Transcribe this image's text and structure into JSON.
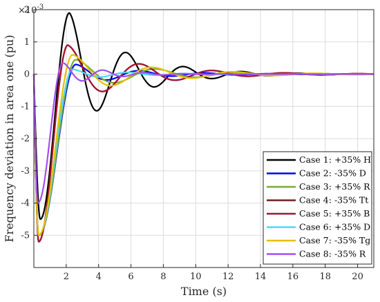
{
  "chart_data": {
    "type": "line",
    "title": "",
    "xlabel": "Time (s)",
    "ylabel": "Frequency deviation in area one (pu)",
    "y_exponent_label": "×10",
    "y_exponent_power": "-3",
    "xlim": [
      0,
      21
    ],
    "ylim": [
      -6,
      2
    ],
    "xticks": [
      "2",
      "4",
      "6",
      "8",
      "10",
      "12",
      "14",
      "16",
      "18",
      "20"
    ],
    "xtick_values": [
      2,
      4,
      6,
      8,
      10,
      12,
      14,
      16,
      18,
      20
    ],
    "yticks": [
      "2",
      "1",
      "0",
      "-1",
      "-2",
      "-3",
      "-4",
      "-5"
    ],
    "ytick_values": [
      2,
      1,
      0,
      -1,
      -2,
      -3,
      -4,
      -5
    ],
    "grid": true,
    "legend_position": "bottom-right",
    "series": [
      {
        "name": "Case 1: +35% H",
        "color": "#000000",
        "shape": [
          0.4,
          -4.5,
          1.9,
          2.2,
          3.55
        ]
      },
      {
        "name": "Case 2: -35% D",
        "color": "#0000ff",
        "shape": [
          0.3,
          -5.0,
          0.3,
          2.6,
          4.0
        ]
      },
      {
        "name": "Case 3: +35% R",
        "color": "#77ac30",
        "shape": [
          0.3,
          -5.0,
          0.45,
          2.6,
          5.0
        ]
      },
      {
        "name": "Case 4: -35% Tt",
        "color": "#6e1c1c",
        "shape": [
          0.3,
          -5.2,
          0.9,
          2.1,
          4.5
        ]
      },
      {
        "name": "Case 5: +35% B",
        "color": "#a2142f",
        "shape": [
          0.3,
          -5.2,
          0.9,
          2.1,
          4.5
        ]
      },
      {
        "name": "Case 6: +35% D",
        "color": "#4dd9f0",
        "shape": [
          0.3,
          -5.0,
          0.15,
          2.4,
          3.5
        ]
      },
      {
        "name": "Case 7: -35% Tg",
        "color": "#e6c000",
        "shape": [
          0.3,
          -5.0,
          0.6,
          2.4,
          5.0
        ]
      },
      {
        "name": "Case 8: -35% R",
        "color": "#a24df0",
        "shape": [
          0.25,
          -4.0,
          0.35,
          1.8,
          2.5
        ]
      }
    ]
  }
}
